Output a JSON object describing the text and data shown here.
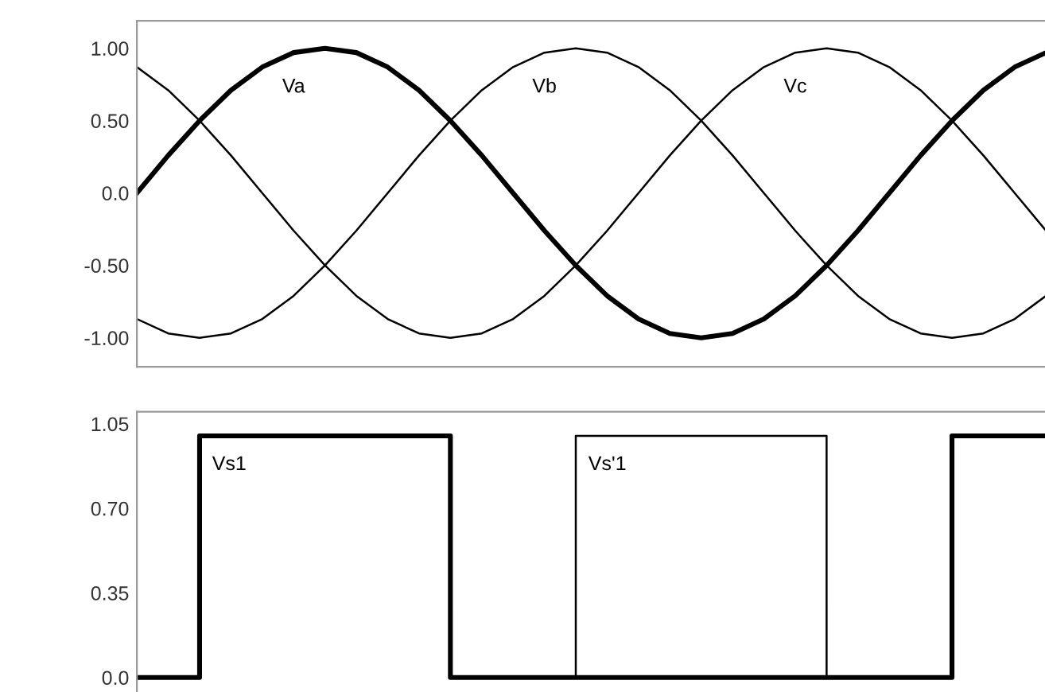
{
  "chart_data": [
    {
      "type": "line",
      "categories": [
        null,
        null,
        null,
        null,
        null,
        null,
        null,
        null,
        null,
        null,
        null,
        null,
        null,
        null,
        null,
        null,
        null,
        null,
        null,
        null,
        null,
        null,
        null,
        null,
        null,
        null,
        null,
        null,
        null,
        null
      ],
      "series": [
        {
          "name": "Va",
          "color": "#000000",
          "values": [
            0,
            0.26,
            0.5,
            0.71,
            0.87,
            0.97,
            1,
            0.97,
            0.87,
            0.71,
            0.5,
            0.26,
            0,
            -0.26,
            -0.5,
            -0.71,
            -0.87,
            -0.97,
            -1,
            -0.97,
            -0.87,
            -0.71,
            -0.5,
            -0.26,
            0,
            0.26,
            0.5,
            0.71,
            0.87,
            0.97
          ]
        },
        {
          "name": "Vb",
          "color": "#000000",
          "values": [
            -0.87,
            -0.97,
            -1,
            -0.97,
            -0.87,
            -0.71,
            -0.5,
            -0.26,
            0,
            0.26,
            0.5,
            0.71,
            0.87,
            0.97,
            1,
            0.97,
            0.87,
            0.71,
            0.5,
            0.26,
            0,
            -0.26,
            -0.5,
            -0.71,
            -0.87,
            -0.97,
            -1,
            -0.97,
            -0.87,
            -0.71
          ]
        },
        {
          "name": "Vc",
          "color": "#000000",
          "values": [
            0.87,
            0.71,
            0.5,
            0.26,
            0,
            -0.26,
            -0.5,
            -0.71,
            -0.87,
            -0.97,
            -1,
            -0.97,
            -0.87,
            -0.71,
            -0.5,
            -0.26,
            0,
            0.26,
            0.5,
            0.71,
            0.87,
            0.97,
            1,
            0.97,
            0.87,
            0.71,
            0.5,
            0.26,
            0,
            -0.26
          ]
        }
      ],
      "ylim": [
        -1.2,
        1.19
      ],
      "yticks": [
        {
          "value": 1,
          "label": "1.00"
        },
        {
          "value": 0.5,
          "label": "0.50"
        },
        {
          "value": 0,
          "label": "0.0"
        },
        {
          "value": -0.5,
          "label": "-0.50"
        },
        {
          "value": -1,
          "label": "-1.00"
        }
      ],
      "tick_labels": "y",
      "grid": false,
      "legend": false,
      "marker": "none",
      "line_style": "solid"
    },
    {
      "type": "step",
      "categories": [
        null,
        null,
        null,
        null,
        null,
        null,
        null,
        null,
        null,
        null,
        null,
        null,
        null,
        null,
        null,
        null,
        null,
        null,
        null,
        null,
        null,
        null,
        null,
        null,
        null,
        null,
        null,
        null,
        null,
        null
      ],
      "series": [
        {
          "name": "Vs1",
          "color": "#000000",
          "values": [
            0,
            0,
            1,
            1,
            1,
            1,
            1,
            1,
            1,
            1,
            0,
            0,
            0,
            0,
            0,
            0,
            0,
            0,
            0,
            0,
            0,
            0,
            0,
            0,
            0,
            0,
            1,
            1,
            1,
            1
          ]
        },
        {
          "name": "Vs'1",
          "color": "#000000",
          "values": [
            null,
            null,
            null,
            null,
            null,
            null,
            null,
            null,
            null,
            null,
            null,
            null,
            null,
            0,
            1,
            1,
            1,
            1,
            1,
            1,
            1,
            1,
            0,
            null,
            null,
            null,
            null,
            null,
            null,
            null
          ]
        }
      ],
      "ylim": [
        -0.06,
        1.1
      ],
      "yticks": [
        {
          "value": 1.05,
          "label": "1.05"
        },
        {
          "value": 0.7,
          "label": "0.70"
        },
        {
          "value": 0.35,
          "label": "0.35"
        },
        {
          "value": 0,
          "label": "0.0"
        }
      ],
      "tick_labels": "y",
      "grid": false,
      "legend": false,
      "marker": "none",
      "line_style": "solid"
    }
  ]
}
